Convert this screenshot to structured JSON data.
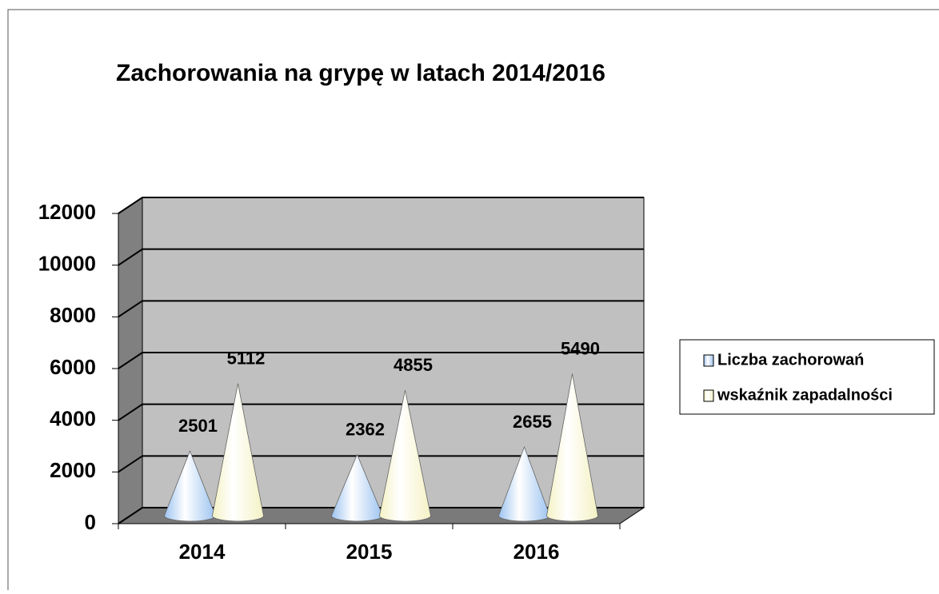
{
  "chart_data": {
    "type": "cone",
    "title": "Zachorowania na grypę w latach 2014/2016",
    "categories": [
      "2014",
      "2015",
      "2016"
    ],
    "series": [
      {
        "name": "Liczba zachorowań",
        "color": "#9cc3f0",
        "values": [
          2501,
          2362,
          2655
        ]
      },
      {
        "name": "wskaźnik zapadalności",
        "color": "#f4f2c4",
        "values": [
          5112,
          4855,
          5490
        ]
      }
    ],
    "ylim": [
      0,
      12000
    ],
    "yticks": [
      0,
      2000,
      4000,
      6000,
      8000,
      10000,
      12000
    ],
    "grid": true,
    "legend": "right"
  }
}
